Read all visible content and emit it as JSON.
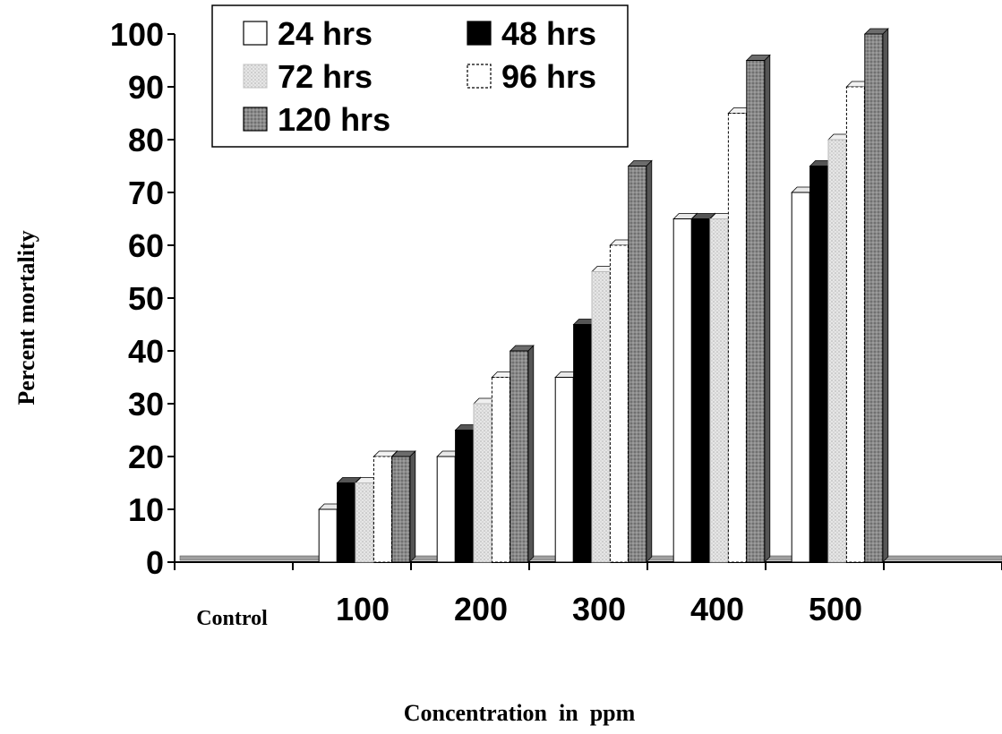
{
  "chart_data": {
    "type": "bar",
    "title": "",
    "xlabel": "Concentration  in  ppm",
    "ylabel": "Percent mortality",
    "categories": [
      "Control",
      "100",
      "200",
      "300",
      "400",
      "500"
    ],
    "ylim": [
      0,
      100
    ],
    "yticks": [
      0,
      10,
      20,
      30,
      40,
      50,
      60,
      70,
      80,
      90,
      100
    ],
    "grid": false,
    "legend_position": "top-left",
    "series": [
      {
        "name": "24 hrs",
        "values": [
          0,
          10,
          20,
          35,
          65,
          70
        ],
        "color": "#ffffff"
      },
      {
        "name": "48 hrs",
        "values": [
          0,
          15,
          25,
          45,
          65,
          75
        ],
        "color": "#000000"
      },
      {
        "name": "72 hrs",
        "values": [
          0,
          15,
          30,
          55,
          65,
          80
        ],
        "color": "#d9d9d9"
      },
      {
        "name": "96 hrs",
        "values": [
          0,
          20,
          35,
          60,
          85,
          90
        ],
        "color": "#ffffff"
      },
      {
        "name": "120 hrs",
        "values": [
          0,
          20,
          40,
          75,
          95,
          100
        ],
        "color": "#808080"
      }
    ]
  }
}
